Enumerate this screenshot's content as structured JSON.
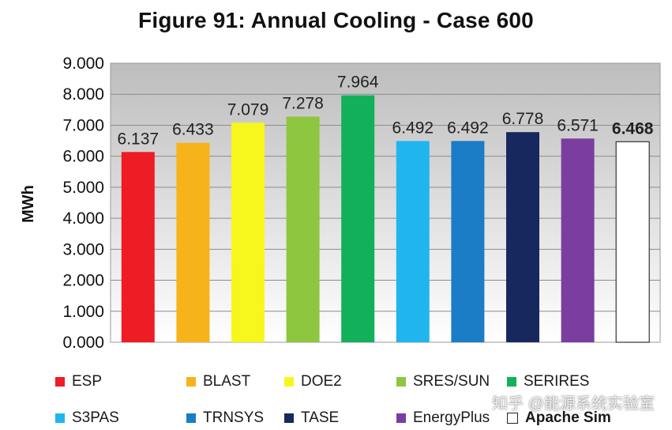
{
  "title": "Figure 91: Annual Cooling - Case 600",
  "watermark": "知乎 @能源系统实验室",
  "chart_data": {
    "type": "bar",
    "title": "Figure 91: Annual Cooling - Case 600",
    "xlabel": "",
    "ylabel": "MWh",
    "ylim": [
      0,
      9
    ],
    "yticks": [
      "0.000",
      "1.000",
      "2.000",
      "3.000",
      "4.000",
      "5.000",
      "6.000",
      "7.000",
      "8.000",
      "9.000"
    ],
    "grid": true,
    "legend_position": "bottom",
    "categories": [
      "ESP",
      "BLAST",
      "DOE2",
      "SRES/SUN",
      "SERIRES",
      "S3PAS",
      "TRNSYS",
      "TASE",
      "EnergyPlus",
      "Apache Sim"
    ],
    "values": [
      6.137,
      6.433,
      7.079,
      7.278,
      7.964,
      6.492,
      6.492,
      6.778,
      6.571,
      6.468
    ],
    "data_labels": [
      "6.137",
      "6.433",
      "7.079",
      "7.278",
      "7.964",
      "6.492",
      "6.492",
      "6.778",
      "6.571",
      "6.468"
    ],
    "colors": [
      "#ee1c24",
      "#f7b31a",
      "#f7f71e",
      "#8dc63f",
      "#12b05a",
      "#21b5ef",
      "#1a7dc6",
      "#16285e",
      "#7b3da0",
      "#ffffff"
    ]
  }
}
